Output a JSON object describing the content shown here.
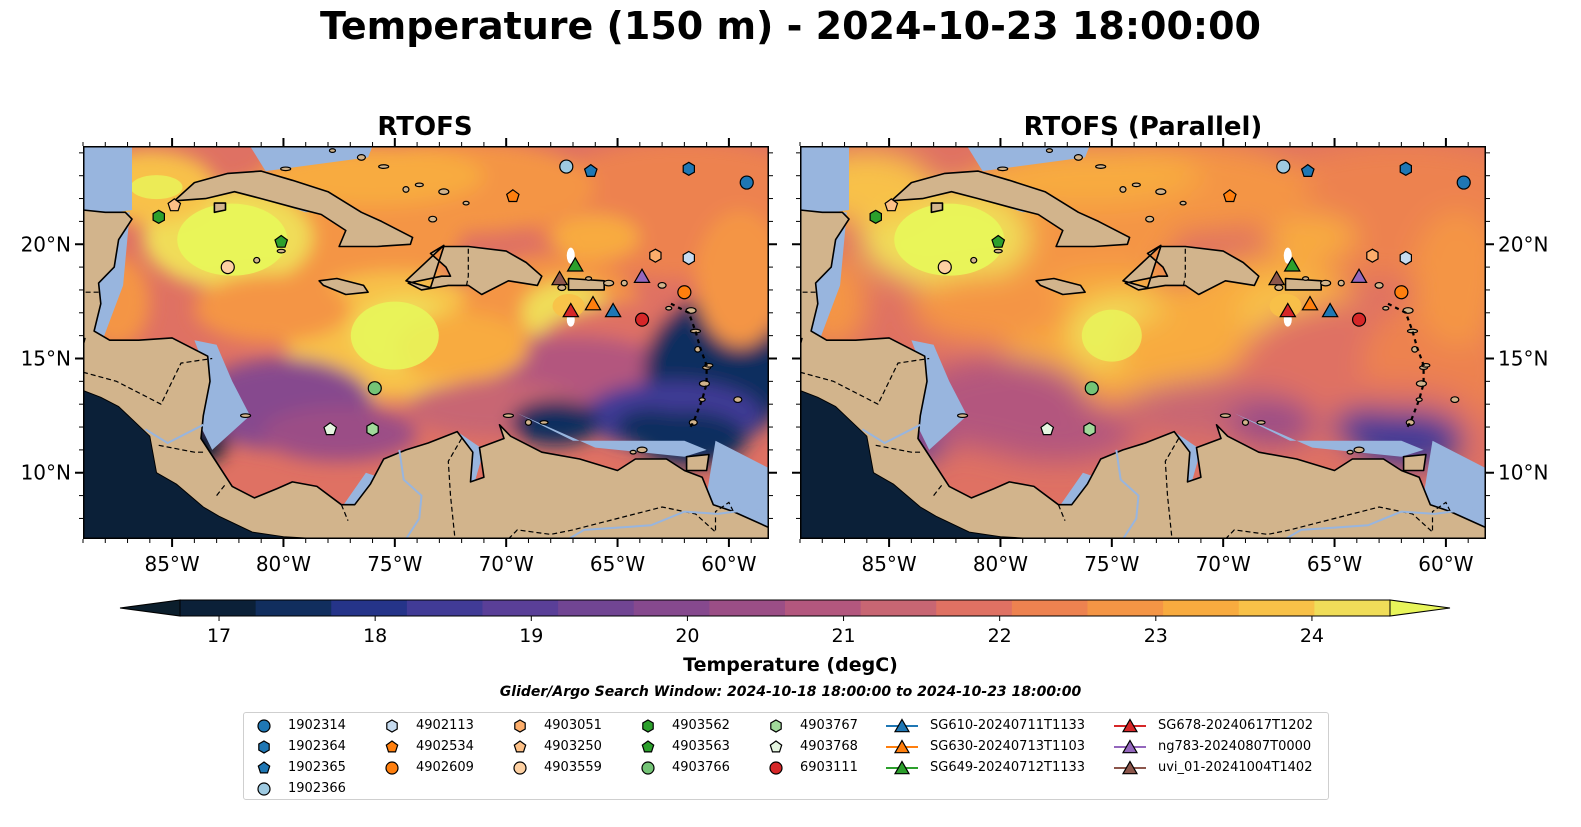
{
  "title": "Temperature (150 m) - 2024-10-23 18:00:00",
  "panels": [
    {
      "title": "RTOFS"
    },
    {
      "title": "RTOFS (Parallel)"
    }
  ],
  "axes": {
    "lon_ticks": [
      "85°W",
      "80°W",
      "75°W",
      "70°W",
      "65°W",
      "60°W"
    ],
    "lat_ticks": [
      "20°N",
      "15°N",
      "10°N"
    ]
  },
  "colorbar": {
    "label": "Temperature (degC)",
    "ticks": [
      "17",
      "18",
      "19",
      "20",
      "21",
      "22",
      "23",
      "24"
    ],
    "range": [
      16.75,
      24.5
    ],
    "extend": "both",
    "colors": [
      "#0b2038",
      "#112e5e",
      "#253489",
      "#413b96",
      "#5a3f98",
      "#714593",
      "#86498e",
      "#9b4e86",
      "#b3577e",
      "#c86673",
      "#df7163",
      "#ed8250",
      "#f49545",
      "#f8ab3f",
      "#f8c148",
      "#f0dd59"
    ],
    "min_color": "#0b1e2c",
    "max_color": "#e8f55a"
  },
  "search_window": "Glider/Argo Search Window: 2024-10-18 18:00:00 to 2024-10-23 18:00:00",
  "map_colors": {
    "land": "#d2b48c",
    "shelf": "#98b5de",
    "coast": "#000000"
  },
  "legend": {
    "items": [
      {
        "label": "1902314",
        "marker": "circle",
        "color": "#1f77b4"
      },
      {
        "label": "1902364",
        "marker": "hexagon",
        "color": "#1f77b4"
      },
      {
        "label": "1902365",
        "marker": "pentagon",
        "color": "#1f77b4"
      },
      {
        "label": "1902366",
        "marker": "circle",
        "color": "#9ecae1"
      },
      {
        "label": "4902113",
        "marker": "hexagon",
        "color": "#c6dbef"
      },
      {
        "label": "4902534",
        "marker": "pentagon",
        "color": "#ff7f0e"
      },
      {
        "label": "4902609",
        "marker": "circle",
        "color": "#ff7f0e"
      },
      {
        "label": "4903051",
        "marker": "hexagon",
        "color": "#fdae6b"
      },
      {
        "label": "4903250",
        "marker": "pentagon",
        "color": "#fdc086"
      },
      {
        "label": "4903559",
        "marker": "circle",
        "color": "#fdd0a2"
      },
      {
        "label": "4903562",
        "marker": "hexagon",
        "color": "#2ca02c"
      },
      {
        "label": "4903563",
        "marker": "pentagon",
        "color": "#2ca02c"
      },
      {
        "label": "4903766",
        "marker": "circle",
        "color": "#74c476"
      },
      {
        "label": "4903767",
        "marker": "hexagon",
        "color": "#a1d99b"
      },
      {
        "label": "4903768",
        "marker": "pentagon",
        "color": "#e5f5e0"
      },
      {
        "label": "6903111",
        "marker": "circle",
        "color": "#d62728"
      },
      {
        "label": "SG610-20240711T1133",
        "marker": "triangle",
        "color": "#1f77b4"
      },
      {
        "label": "SG630-20240713T1103",
        "marker": "triangle",
        "color": "#ff7f0e"
      },
      {
        "label": "SG649-20240712T1133",
        "marker": "triangle",
        "color": "#2ca02c"
      },
      {
        "label": "SG678-20240617T1202",
        "marker": "triangle",
        "color": "#d62728"
      },
      {
        "label": "ng783-20240807T0000",
        "marker": "triangle",
        "color": "#9467bd"
      },
      {
        "label": "uvi_01-20241004T1402",
        "marker": "triangle",
        "color": "#8c564b"
      }
    ]
  },
  "observations": [
    {
      "id": "1902314",
      "lon": -59.2,
      "lat": 22.7
    },
    {
      "id": "1902364",
      "lon": -61.8,
      "lat": 23.3
    },
    {
      "id": "1902365",
      "lon": -66.2,
      "lat": 23.2
    },
    {
      "id": "1902366",
      "lon": -67.3,
      "lat": 23.4
    },
    {
      "id": "4902113",
      "lon": -61.8,
      "lat": 19.4
    },
    {
      "id": "4902534",
      "lon": -69.7,
      "lat": 22.1
    },
    {
      "id": "4902609",
      "lon": -62.0,
      "lat": 17.9
    },
    {
      "id": "4903051",
      "lon": -63.3,
      "lat": 19.5
    },
    {
      "id": "4903250",
      "lon": -84.9,
      "lat": 21.7
    },
    {
      "id": "4903559",
      "lon": -82.5,
      "lat": 19.0
    },
    {
      "id": "4903562",
      "lon": -85.6,
      "lat": 21.2
    },
    {
      "id": "4903563",
      "lon": -80.1,
      "lat": 20.1
    },
    {
      "id": "4903766",
      "lon": -75.9,
      "lat": 13.7
    },
    {
      "id": "4903767",
      "lon": -76.0,
      "lat": 11.9
    },
    {
      "id": "4903768",
      "lon": -77.9,
      "lat": 11.9
    },
    {
      "id": "6903111",
      "lon": -63.9,
      "lat": 16.7
    },
    {
      "id": "SG610-20240711T1133",
      "lon": -65.2,
      "lat": 17.1
    },
    {
      "id": "SG630-20240713T1103",
      "lon": -66.1,
      "lat": 17.4
    },
    {
      "id": "SG649-20240712T1133",
      "lon": -66.9,
      "lat": 19.1
    },
    {
      "id": "SG678-20240617T1202",
      "lon": -67.1,
      "lat": 17.1
    },
    {
      "id": "ng783-20240807T0000",
      "lon": -63.9,
      "lat": 18.6
    },
    {
      "id": "uvi_01-20241004T1402",
      "lon": -67.6,
      "lat": 18.5
    }
  ]
}
